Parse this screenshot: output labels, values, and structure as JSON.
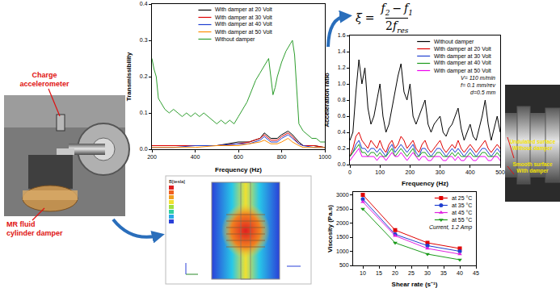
{
  "chart_data": [
    {
      "type": "line",
      "x_label": "Frequency (Hz)",
      "y_label": "Transmissibility",
      "xlim": [
        200,
        1000
      ],
      "xticks": [
        200,
        400,
        600,
        800,
        1000
      ],
      "ylim": [
        0,
        0.4
      ],
      "yticks": [
        {
          "value": 0,
          "label": "0.0"
        },
        0.1,
        0.2,
        0.3,
        0.4
      ],
      "grid": false,
      "legend": "upper center",
      "series": [
        {
          "name": "With damper at 20 Volt",
          "color": "#000000",
          "x": [
            200,
            300,
            400,
            500,
            600,
            650,
            700,
            720,
            750,
            780,
            800,
            830,
            850,
            880,
            900,
            950,
            1000
          ],
          "values": [
            0.01,
            0.01,
            0.01,
            0.01,
            0.02,
            0.02,
            0.03,
            0.045,
            0.03,
            0.03,
            0.04,
            0.05,
            0.04,
            0.02,
            0.01,
            0.01,
            0.005
          ]
        },
        {
          "name": "With damper at 30 Volt",
          "color": "#e00000",
          "x": [
            200,
            300,
            400,
            500,
            600,
            650,
            700,
            720,
            750,
            780,
            800,
            830,
            850,
            880,
            900,
            950,
            1000
          ],
          "values": [
            0.01,
            0.01,
            0.01,
            0.01,
            0.015,
            0.02,
            0.03,
            0.04,
            0.025,
            0.025,
            0.035,
            0.045,
            0.035,
            0.015,
            0.01,
            0.01,
            0.005
          ]
        },
        {
          "name": "With damper at 40 Volt",
          "color": "#1f3fd0",
          "x": [
            200,
            300,
            400,
            500,
            600,
            650,
            700,
            720,
            750,
            780,
            800,
            830,
            850,
            880,
            900,
            950,
            1000
          ],
          "values": [
            0.005,
            0.005,
            0.01,
            0.01,
            0.015,
            0.015,
            0.025,
            0.035,
            0.02,
            0.02,
            0.03,
            0.04,
            0.03,
            0.015,
            0.01,
            0.005,
            0.005
          ]
        },
        {
          "name": "With damper at 50 Volt",
          "color": "#ff8c00",
          "x": [
            200,
            300,
            400,
            500,
            600,
            650,
            700,
            720,
            750,
            780,
            800,
            830,
            850,
            880,
            900,
            950,
            1000
          ],
          "values": [
            0.005,
            0.005,
            0.005,
            0.01,
            0.01,
            0.015,
            0.02,
            0.025,
            0.015,
            0.015,
            0.02,
            0.03,
            0.02,
            0.01,
            0.005,
            0.005,
            0.005
          ]
        },
        {
          "name": "Without damper",
          "color": "#2e9e2e",
          "x": [
            200,
            210,
            220,
            230,
            240,
            260,
            280,
            300,
            320,
            340,
            360,
            380,
            400,
            420,
            440,
            460,
            480,
            500,
            520,
            540,
            560,
            580,
            600,
            620,
            640,
            660,
            680,
            700,
            720,
            740,
            750,
            760,
            770,
            780,
            800,
            820,
            840,
            850,
            860,
            870,
            880,
            900,
            920,
            940,
            960,
            980,
            1000
          ],
          "values": [
            0.25,
            0.22,
            0.2,
            0.14,
            0.13,
            0.11,
            0.1,
            0.11,
            0.1,
            0.09,
            0.1,
            0.09,
            0.1,
            0.09,
            0.1,
            0.09,
            0.08,
            0.07,
            0.08,
            0.07,
            0.08,
            0.07,
            0.09,
            0.11,
            0.13,
            0.16,
            0.19,
            0.21,
            0.23,
            0.25,
            0.2,
            0.15,
            0.17,
            0.2,
            0.24,
            0.27,
            0.29,
            0.3,
            0.26,
            0.15,
            0.07,
            0.05,
            0.04,
            0.03,
            0.03,
            0.02,
            0.02
          ]
        }
      ]
    },
    {
      "type": "line",
      "x_label": "Frequency (Hz)",
      "y_label": "Acceleration ratio",
      "xlim": [
        0,
        500
      ],
      "xticks": [
        0,
        100,
        200,
        300,
        400,
        500
      ],
      "ylim": [
        0,
        1.6
      ],
      "yticks": [
        {
          "value": 0,
          "label": "0.0"
        },
        0.2,
        0.4,
        0.6,
        0.8,
        {
          "value": 1,
          "label": "1.0"
        },
        1.2,
        1.4,
        1.6
      ],
      "grid": false,
      "legend": "upper right",
      "annotations": [
        "V= 110 m/min",
        "f= 0.1 mm/rev",
        "d=0.5 mm"
      ],
      "x": [
        0,
        10,
        20,
        30,
        40,
        50,
        60,
        70,
        80,
        90,
        100,
        110,
        120,
        130,
        140,
        150,
        160,
        170,
        180,
        190,
        200,
        210,
        220,
        230,
        240,
        250,
        260,
        270,
        280,
        290,
        300,
        310,
        320,
        330,
        340,
        350,
        360,
        370,
        380,
        390,
        400,
        410,
        420,
        430,
        440,
        450,
        460,
        470,
        480,
        490,
        500
      ],
      "series": [
        {
          "name": "Without damper",
          "color": "#000000",
          "values": [
            0.3,
            0.4,
            0.9,
            1.3,
            1.0,
            1.2,
            0.7,
            0.5,
            0.6,
            0.8,
            1.0,
            0.6,
            0.4,
            0.5,
            0.7,
            0.9,
            1.1,
            1.25,
            0.9,
            0.8,
            1.0,
            0.6,
            0.5,
            0.6,
            0.7,
            0.8,
            0.5,
            0.4,
            0.5,
            0.55,
            0.6,
            0.4,
            0.35,
            0.45,
            0.5,
            0.6,
            0.7,
            0.45,
            0.3,
            0.4,
            0.5,
            0.35,
            0.3,
            0.45,
            0.6,
            0.8,
            0.5,
            0.3,
            0.45,
            0.6,
            0.4
          ]
        },
        {
          "name": "With damper at 20 Volt",
          "color": "#e00000",
          "values": [
            0.1,
            0.2,
            0.35,
            0.4,
            0.3,
            0.25,
            0.2,
            0.3,
            0.25,
            0.2,
            0.3,
            0.2,
            0.15,
            0.25,
            0.3,
            0.2,
            0.25,
            0.35,
            0.3,
            0.2,
            0.25,
            0.3,
            0.2,
            0.15,
            0.25,
            0.3,
            0.2,
            0.15,
            0.2,
            0.25,
            0.3,
            0.2,
            0.15,
            0.2,
            0.25,
            0.2,
            0.3,
            0.2,
            0.15,
            0.2,
            0.25,
            0.2,
            0.15,
            0.2,
            0.25,
            0.3,
            0.2,
            0.15,
            0.2,
            0.25,
            0.2
          ]
        },
        {
          "name": "With damper at 30 Volt",
          "color": "#1f3fd0",
          "values": [
            0.1,
            0.15,
            0.25,
            0.3,
            0.2,
            0.2,
            0.15,
            0.2,
            0.2,
            0.15,
            0.2,
            0.15,
            0.1,
            0.2,
            0.25,
            0.15,
            0.2,
            0.25,
            0.2,
            0.15,
            0.2,
            0.25,
            0.15,
            0.1,
            0.2,
            0.2,
            0.15,
            0.1,
            0.15,
            0.2,
            0.2,
            0.15,
            0.1,
            0.15,
            0.2,
            0.15,
            0.2,
            0.15,
            0.1,
            0.15,
            0.2,
            0.15,
            0.1,
            0.15,
            0.2,
            0.2,
            0.15,
            0.1,
            0.15,
            0.2,
            0.15
          ]
        },
        {
          "name": "With damper at 40 Volt",
          "color": "#1a9a1a",
          "values": [
            0.1,
            0.15,
            0.2,
            0.25,
            0.15,
            0.15,
            0.1,
            0.15,
            0.15,
            0.1,
            0.15,
            0.1,
            0.1,
            0.15,
            0.2,
            0.1,
            0.15,
            0.2,
            0.15,
            0.1,
            0.15,
            0.2,
            0.1,
            0.1,
            0.15,
            0.15,
            0.1,
            0.1,
            0.1,
            0.15,
            0.15,
            0.1,
            0.1,
            0.1,
            0.15,
            0.1,
            0.15,
            0.1,
            0.1,
            0.1,
            0.15,
            0.1,
            0.1,
            0.1,
            0.15,
            0.15,
            0.1,
            0.1,
            0.1,
            0.15,
            0.1
          ]
        },
        {
          "name": "With damper at 50 Volt",
          "color": "#ee00ee",
          "values": [
            0.05,
            0.1,
            0.15,
            0.2,
            0.1,
            0.1,
            0.1,
            0.1,
            0.1,
            0.05,
            0.1,
            0.1,
            0.05,
            0.1,
            0.15,
            0.1,
            0.1,
            0.15,
            0.1,
            0.05,
            0.1,
            0.15,
            0.1,
            0.05,
            0.1,
            0.1,
            0.05,
            0.05,
            0.1,
            0.1,
            0.1,
            0.05,
            0.05,
            0.1,
            0.1,
            0.05,
            0.1,
            0.05,
            0.05,
            0.1,
            0.1,
            0.05,
            0.05,
            0.1,
            0.1,
            0.1,
            0.05,
            0.05,
            0.1,
            0.1,
            0.05
          ]
        }
      ]
    },
    {
      "type": "line",
      "x_label": "Shear rate (s⁻¹)",
      "y_label": "Viscosity (Pa.s)",
      "xlim": [
        7,
        45
      ],
      "xticks": [
        10,
        15,
        20,
        25,
        30,
        35,
        40,
        45
      ],
      "ylim": [
        500,
        3100
      ],
      "yticks": [
        500,
        1000,
        1500,
        2000,
        2500,
        3000
      ],
      "grid": false,
      "legend": "upper right",
      "annotations": [
        "Current, 1.2 Amp"
      ],
      "x": [
        10,
        20,
        30,
        40
      ],
      "series": [
        {
          "name": "at 25 °C",
          "color": "#e00000",
          "marker": "square",
          "values": [
            3000,
            1750,
            1300,
            1100
          ]
        },
        {
          "name": "at 35 °C",
          "color": "#1f3fd0",
          "marker": "circle",
          "values": [
            2850,
            1600,
            1200,
            1000
          ]
        },
        {
          "name": "at 45 °C",
          "color": "#e020e0",
          "marker": "triangle-up",
          "values": [
            2750,
            1550,
            1100,
            900
          ]
        },
        {
          "name": "at 55 °C",
          "color": "#1a9a1a",
          "marker": "triangle-down",
          "values": [
            2500,
            1300,
            900,
            700
          ]
        }
      ]
    }
  ],
  "formula": {
    "lhs": "ξ",
    "relation": "=",
    "numerator": {
      "left": [
        "f",
        "2"
      ],
      "operator": "−",
      "right": [
        "f",
        "1"
      ]
    },
    "denominator": {
      "coefficient": "2",
      "base": "f",
      "subscript": "res"
    }
  },
  "photos": {
    "lathe": {
      "labels": [
        [
          "Charge",
          "accelerometer"
        ],
        [
          "MR fluid",
          "cylinder damper"
        ]
      ]
    },
    "simulation": {
      "legend_title": "B[tesla]"
    },
    "workpiece": {
      "labels": [
        [
          "Undulated surface",
          "Without damper"
        ],
        [
          "Smooth surface",
          "With damper"
        ]
      ]
    }
  }
}
